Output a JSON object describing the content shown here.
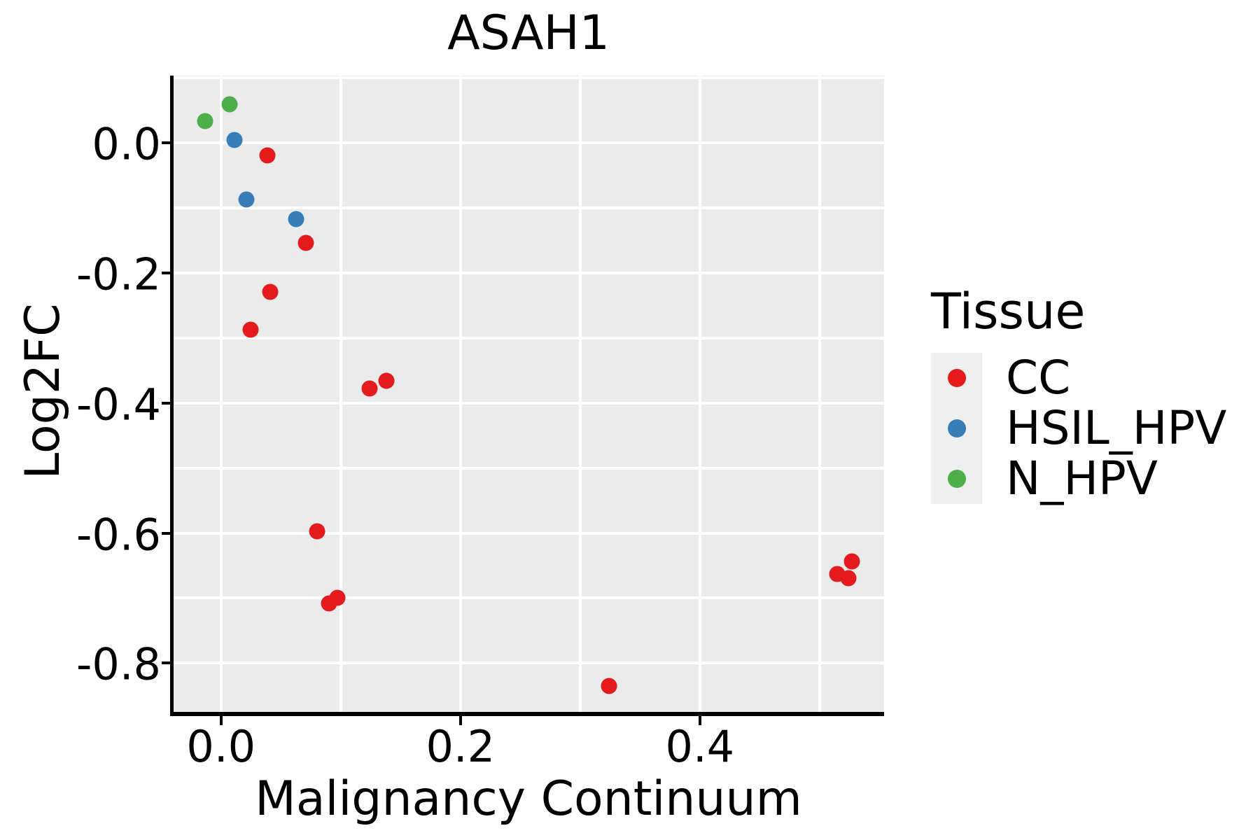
{
  "title": "ASAH1",
  "axes": {
    "x": {
      "label": "Malignancy Continuum",
      "tick_values": [
        0.0,
        0.2,
        0.4
      ],
      "tick_labels": [
        "0.0",
        "0.2",
        "0.4"
      ],
      "gridlines": [
        0.0,
        0.1,
        0.2,
        0.3,
        0.4,
        0.5
      ]
    },
    "y": {
      "label": "Log2FC",
      "tick_values": [
        0.0,
        -0.2,
        -0.4,
        -0.6,
        -0.8
      ],
      "tick_labels": [
        "0.0",
        "-0.2",
        "-0.4",
        "-0.6",
        "-0.8"
      ],
      "gridlines": [
        0.1,
        0.0,
        -0.1,
        -0.2,
        -0.3,
        -0.4,
        -0.5,
        -0.6,
        -0.7,
        -0.8
      ]
    }
  },
  "legend": {
    "title": "Tissue",
    "items": [
      {
        "label": "CC",
        "color": "#E41A1C"
      },
      {
        "label": "HSIL_HPV",
        "color": "#377EB8"
      },
      {
        "label": "N_HPV",
        "color": "#4DAF4A"
      }
    ]
  },
  "colors": {
    "panel_background": "#EBEBEB",
    "gridline": "#FFFFFF",
    "legend_key_background": "#EFEFEF",
    "cc": "#E41A1C",
    "hsil_hpv": "#377EB8",
    "n_hpv": "#4DAF4A"
  },
  "chart_data": {
    "type": "scatter",
    "title": "ASAH1",
    "xlabel": "Malignancy Continuum",
    "ylabel": "Log2FC",
    "xlim": [
      -0.0396,
      0.5539
    ],
    "ylim": [
      -0.8748,
      0.1029
    ],
    "grid": true,
    "legend_position": "right",
    "series": [
      {
        "name": "CC",
        "color": "#E41A1C",
        "points": [
          [
            0.039,
            -0.02
          ],
          [
            0.071,
            -0.154
          ],
          [
            0.041,
            -0.229
          ],
          [
            0.025,
            -0.287
          ],
          [
            0.124,
            -0.378
          ],
          [
            0.138,
            -0.366
          ],
          [
            0.08,
            -0.597
          ],
          [
            0.09,
            -0.708
          ],
          [
            0.097,
            -0.7
          ],
          [
            0.527,
            -0.644
          ],
          [
            0.515,
            -0.663
          ],
          [
            0.524,
            -0.669
          ],
          [
            0.324,
            -0.835
          ]
        ]
      },
      {
        "name": "HSIL_HPV",
        "color": "#377EB8",
        "points": [
          [
            0.011,
            0.004
          ],
          [
            0.021,
            -0.087
          ],
          [
            0.063,
            -0.118
          ]
        ]
      },
      {
        "name": "N_HPV",
        "color": "#4DAF4A",
        "points": [
          [
            -0.013,
            0.033
          ],
          [
            0.007,
            0.059
          ]
        ]
      }
    ]
  }
}
